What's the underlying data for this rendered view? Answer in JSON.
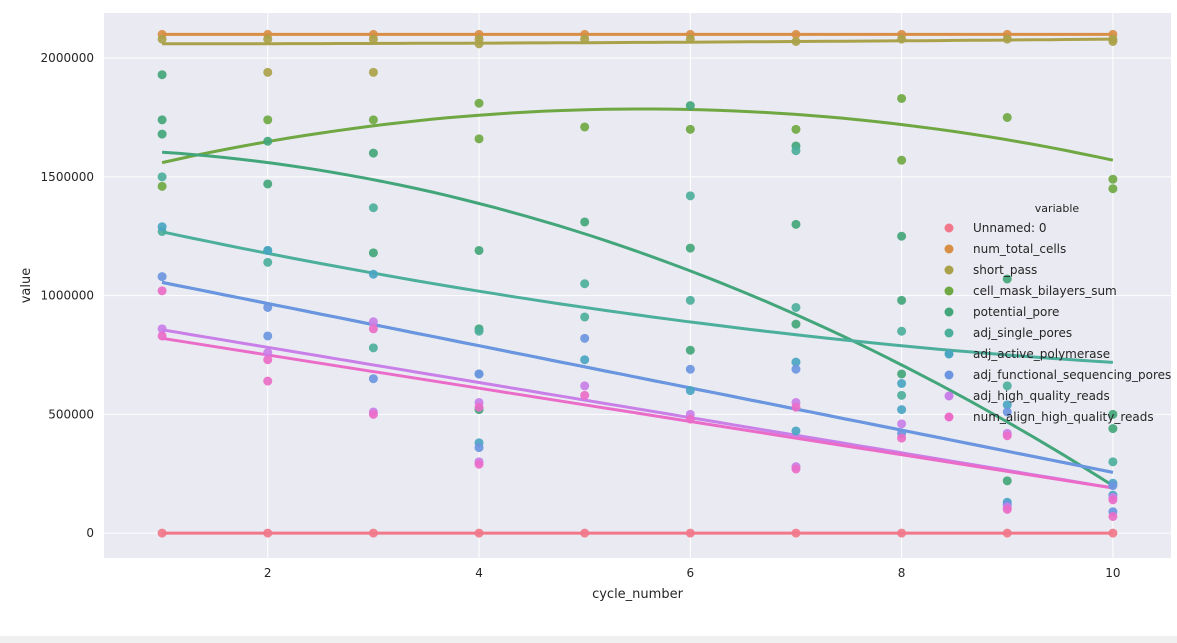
{
  "chart_data": {
    "type": "scatter",
    "xlabel": "cycle_number",
    "ylabel": "value",
    "xlim": [
      0.45,
      10.55
    ],
    "ylim": [
      -105000,
      2190000
    ],
    "xticks": [
      2,
      4,
      6,
      8,
      10
    ],
    "yticks": [
      0,
      500000,
      1000000,
      1500000,
      2000000
    ],
    "grid": true,
    "legend_title": "variable",
    "legend_position": "right",
    "series": [
      {
        "name": "Unnamed: 0",
        "color": "#f0788a",
        "points": [
          [
            1,
            0
          ],
          [
            2,
            0
          ],
          [
            3,
            0
          ],
          [
            4,
            0
          ],
          [
            5,
            0
          ],
          [
            6,
            0
          ],
          [
            7,
            0
          ],
          [
            8,
            0
          ],
          [
            9,
            0
          ],
          [
            10,
            0
          ]
        ],
        "fit": [
          0,
          0,
          0
        ]
      },
      {
        "name": "num_total_cells",
        "color": "#d98e45",
        "points": [
          [
            1,
            2100000
          ],
          [
            2,
            2100000
          ],
          [
            3,
            2100000
          ],
          [
            4,
            2100000
          ],
          [
            5,
            2100000
          ],
          [
            6,
            2100000
          ],
          [
            7,
            2100000
          ],
          [
            8,
            2100000
          ],
          [
            9,
            2100000
          ],
          [
            10,
            2100000
          ]
        ],
        "fit": [
          2100000,
          0,
          0
        ]
      },
      {
        "name": "short_pass",
        "color": "#aaa24a",
        "points": [
          [
            1,
            2080000
          ],
          [
            2,
            1940000
          ],
          [
            2,
            2080000
          ],
          [
            3,
            1940000
          ],
          [
            3,
            2080000
          ],
          [
            4,
            2060000
          ],
          [
            4,
            2080000
          ],
          [
            5,
            2080000
          ],
          [
            6,
            2080000
          ],
          [
            7,
            2070000
          ],
          [
            8,
            2080000
          ],
          [
            9,
            2080000
          ],
          [
            10,
            2070000
          ],
          [
            10,
            2080000
          ]
        ],
        "fit": [
          2060000,
          0,
          200
        ]
      },
      {
        "name": "cell_mask_bilayers_sum",
        "color": "#6fa843",
        "points": [
          [
            1,
            1460000
          ],
          [
            2,
            1740000
          ],
          [
            3,
            1740000
          ],
          [
            4,
            1660000
          ],
          [
            4,
            1810000
          ],
          [
            5,
            1710000
          ],
          [
            6,
            1700000
          ],
          [
            7,
            1700000
          ],
          [
            8,
            1830000
          ],
          [
            8,
            1570000
          ],
          [
            9,
            1750000
          ],
          [
            10,
            1490000
          ],
          [
            10,
            1450000
          ]
        ],
        "fit": [
          1450000,
          121000,
          -10900
        ]
      },
      {
        "name": "potential_pore",
        "color": "#43a67a",
        "points": [
          [
            1,
            1930000
          ],
          [
            1,
            1740000
          ],
          [
            1,
            1680000
          ],
          [
            2,
            1650000
          ],
          [
            2,
            1470000
          ],
          [
            3,
            1600000
          ],
          [
            3,
            1180000
          ],
          [
            4,
            1190000
          ],
          [
            4,
            860000
          ],
          [
            4,
            520000
          ],
          [
            5,
            1310000
          ],
          [
            6,
            1200000
          ],
          [
            6,
            1800000
          ],
          [
            6,
            770000
          ],
          [
            7,
            1300000
          ],
          [
            7,
            880000
          ],
          [
            7,
            1630000
          ],
          [
            8,
            1250000
          ],
          [
            8,
            980000
          ],
          [
            8,
            670000
          ],
          [
            9,
            1070000
          ],
          [
            9,
            220000
          ],
          [
            10,
            440000
          ],
          [
            10,
            500000
          ]
        ],
        "fit": [
          1620000,
          -2000,
          -14000
        ]
      },
      {
        "name": "adj_single_pores",
        "color": "#4caf9c",
        "points": [
          [
            1,
            1500000
          ],
          [
            1,
            1270000
          ],
          [
            2,
            1140000
          ],
          [
            2,
            1190000
          ],
          [
            3,
            1370000
          ],
          [
            3,
            780000
          ],
          [
            4,
            850000
          ],
          [
            5,
            1050000
          ],
          [
            5,
            910000
          ],
          [
            6,
            1420000
          ],
          [
            6,
            980000
          ],
          [
            7,
            1610000
          ],
          [
            7,
            950000
          ],
          [
            8,
            850000
          ],
          [
            8,
            580000
          ],
          [
            9,
            620000
          ],
          [
            10,
            300000
          ]
        ],
        "fit": [
          1366667,
          -101852,
          3704
        ]
      },
      {
        "name": "adj_active_polymerase",
        "color": "#4aa5c2",
        "points": [
          [
            1,
            1290000
          ],
          [
            2,
            1190000
          ],
          [
            3,
            1090000
          ],
          [
            4,
            670000
          ],
          [
            4,
            380000
          ],
          [
            5,
            730000
          ],
          [
            6,
            600000
          ],
          [
            7,
            430000
          ],
          [
            7,
            720000
          ],
          [
            8,
            520000
          ],
          [
            8,
            630000
          ],
          [
            9,
            130000
          ],
          [
            9,
            540000
          ],
          [
            10,
            210000
          ],
          [
            10,
            160000
          ]
        ],
        "fit": [
          1144444,
          -88889,
          0
        ]
      },
      {
        "name": "adj_functional_sequencing_pores",
        "color": "#6b95e0",
        "points": [
          [
            1,
            1080000
          ],
          [
            2,
            950000
          ],
          [
            2,
            830000
          ],
          [
            3,
            650000
          ],
          [
            4,
            670000
          ],
          [
            4,
            360000
          ],
          [
            5,
            820000
          ],
          [
            6,
            690000
          ],
          [
            7,
            690000
          ],
          [
            8,
            420000
          ],
          [
            9,
            510000
          ],
          [
            9,
            120000
          ],
          [
            10,
            90000
          ],
          [
            10,
            200000
          ]
        ],
        "fit": [
          1144444,
          -88889,
          0
        ]
      },
      {
        "name": "adj_high_quality_reads",
        "color": "#c97fe8",
        "points": [
          [
            1,
            860000
          ],
          [
            2,
            760000
          ],
          [
            3,
            890000
          ],
          [
            3,
            510000
          ],
          [
            4,
            550000
          ],
          [
            4,
            300000
          ],
          [
            5,
            620000
          ],
          [
            6,
            500000
          ],
          [
            7,
            550000
          ],
          [
            7,
            280000
          ],
          [
            8,
            460000
          ],
          [
            9,
            420000
          ],
          [
            9,
            110000
          ],
          [
            10,
            150000
          ]
        ],
        "fit": [
          930000,
          -74000,
          0
        ]
      },
      {
        "name": "num_align_high_quality_reads",
        "color": "#ea6cc8",
        "points": [
          [
            1,
            1020000
          ],
          [
            1,
            830000
          ],
          [
            2,
            730000
          ],
          [
            2,
            640000
          ],
          [
            3,
            860000
          ],
          [
            3,
            500000
          ],
          [
            4,
            530000
          ],
          [
            4,
            290000
          ],
          [
            5,
            580000
          ],
          [
            6,
            480000
          ],
          [
            7,
            530000
          ],
          [
            7,
            270000
          ],
          [
            8,
            400000
          ],
          [
            9,
            410000
          ],
          [
            9,
            100000
          ],
          [
            10,
            70000
          ],
          [
            10,
            140000
          ]
        ],
        "fit": [
          890000,
          -70000,
          0
        ]
      }
    ]
  }
}
